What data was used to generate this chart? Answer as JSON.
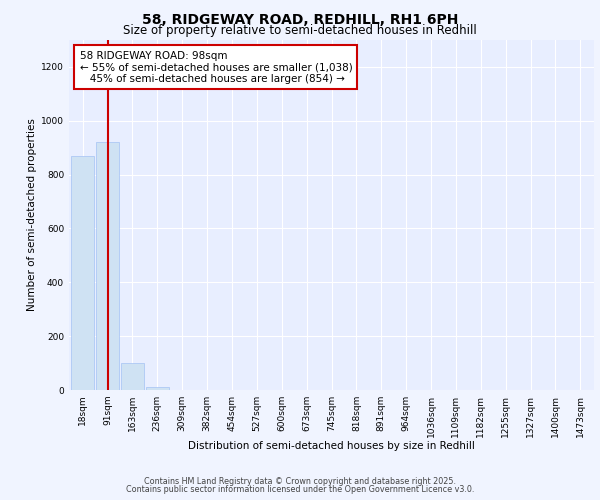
{
  "title": "58, RIDGEWAY ROAD, REDHILL, RH1 6PH",
  "subtitle": "Size of property relative to semi-detached houses in Redhill",
  "xlabel": "Distribution of semi-detached houses by size in Redhill",
  "ylabel": "Number of semi-detached properties",
  "categories": [
    "18sqm",
    "91sqm",
    "163sqm",
    "236sqm",
    "309sqm",
    "382sqm",
    "454sqm",
    "527sqm",
    "600sqm",
    "673sqm",
    "745sqm",
    "818sqm",
    "891sqm",
    "964sqm",
    "1036sqm",
    "1109sqm",
    "1182sqm",
    "1255sqm",
    "1327sqm",
    "1400sqm",
    "1473sqm"
  ],
  "values": [
    870,
    920,
    100,
    10,
    0,
    0,
    0,
    0,
    0,
    0,
    0,
    0,
    0,
    0,
    0,
    0,
    0,
    0,
    0,
    0,
    0
  ],
  "bar_color": "#cfe2f3",
  "bar_edgecolor": "#a4c2f4",
  "highlight_index": 1,
  "highlight_color": "#cc0000",
  "annotation_line1": "58 RIDGEWAY ROAD: 98sqm",
  "annotation_line2": "← 55% of semi-detached houses are smaller (1,038)",
  "annotation_line3": "   45% of semi-detached houses are larger (854) →",
  "ylim": [
    0,
    1300
  ],
  "yticks": [
    0,
    200,
    400,
    600,
    800,
    1000,
    1200
  ],
  "footer_line1": "Contains HM Land Registry data © Crown copyright and database right 2025.",
  "footer_line2": "Contains public sector information licensed under the Open Government Licence v3.0.",
  "background_color": "#f0f4ff",
  "plot_bg_color": "#e8eeff",
  "grid_color": "#ffffff",
  "title_fontsize": 10,
  "subtitle_fontsize": 8.5,
  "xlabel_fontsize": 7.5,
  "ylabel_fontsize": 7.5,
  "tick_fontsize": 6.5,
  "annotation_fontsize": 7.5,
  "footer_fontsize": 5.8
}
